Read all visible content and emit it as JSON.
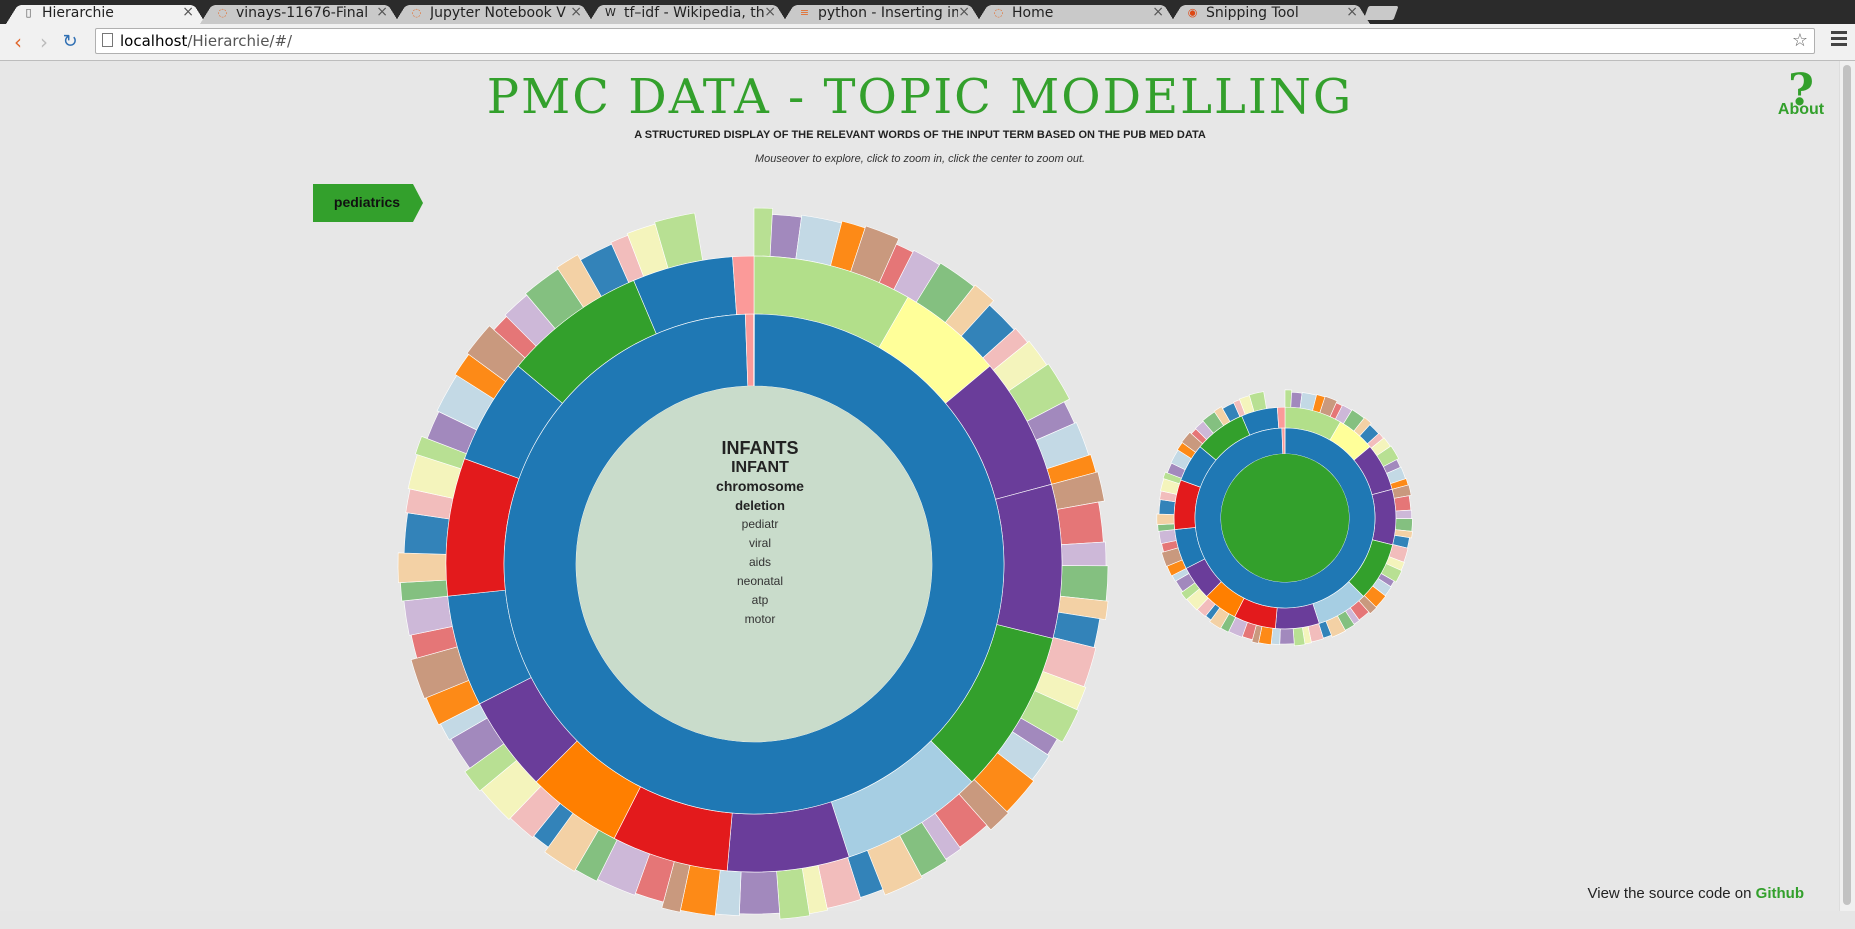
{
  "browser": {
    "tabs": [
      {
        "title": "Hierarchie",
        "icon": "page-icon",
        "active": true
      },
      {
        "title": "vinays-11676-Final",
        "icon": "jupyter-icon",
        "active": false
      },
      {
        "title": "Jupyter Notebook V",
        "icon": "jupyter-icon",
        "active": false
      },
      {
        "title": "tf–idf - Wikipedia, th",
        "icon": "wikipedia-icon",
        "active": false
      },
      {
        "title": "python - Inserting im",
        "icon": "stackoverflow-icon",
        "active": false
      },
      {
        "title": "Home",
        "icon": "jupyter-icon",
        "active": false
      },
      {
        "title": "Snipping Tool",
        "icon": "ubuntu-icon",
        "active": false
      }
    ],
    "url_host": "localhost",
    "url_path": "/Hierarchie/#/"
  },
  "header": {
    "title": "PMC DATA - TOPIC MODELLING",
    "subtitle": "A STRUCTURED DISPLAY OF THE RELEVANT WORDS OF THE INPUT TERM BASED ON THE PUB MED DATA",
    "hint": "Mouseover to explore, click to zoom in, click the center to zoom out.",
    "about_symbol": "?",
    "about_label": "About"
  },
  "breadcrumb": {
    "label": "pediatrics",
    "color": "#33a02c"
  },
  "center": {
    "words": [
      "INFANTS",
      "INFANT",
      "chromosome",
      "deletion",
      "pediatr",
      "viral",
      "aids",
      "neonatal",
      "atp",
      "motor"
    ]
  },
  "footer": {
    "text": "View the source code on ",
    "link": "Github"
  },
  "colors": {
    "brand_green": "#33a02c",
    "center_fill": "#c9dccb",
    "ring_blue": "#1f78b4",
    "palette": [
      "#1f78b4",
      "#a6cee3",
      "#33a02c",
      "#b2df8a",
      "#e31a1c",
      "#fb9a99",
      "#ff7f00",
      "#fdbf6f",
      "#6a3d9a",
      "#cab2d6",
      "#ffff99",
      "#b15928"
    ]
  }
}
